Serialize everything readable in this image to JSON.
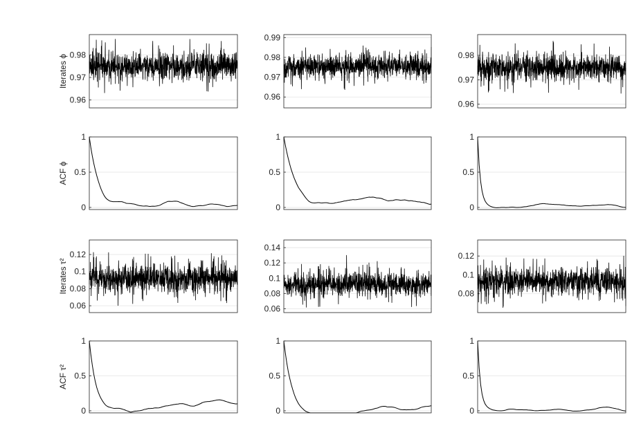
{
  "figure": {
    "background": "#ffffff",
    "trace_color": "#000000",
    "grid_color": "#e3e3e3"
  },
  "chart_data": [
    {
      "type": "line",
      "row": 0,
      "col": 0,
      "ylabel": "Iterates ϕ",
      "ylim": [
        0.9565,
        0.989
      ],
      "yticks": [
        0.96,
        0.97,
        0.98
      ],
      "grid": true,
      "series": [
        {
          "kind": "trace",
          "n": 1000,
          "center": 0.975,
          "spread": 0.0055,
          "clip": [
            0.957,
            0.989
          ]
        }
      ]
    },
    {
      "type": "line",
      "row": 0,
      "col": 1,
      "ylabel": "",
      "ylim": [
        0.9545,
        0.9915
      ],
      "yticks": [
        0.96,
        0.97,
        0.98,
        0.99
      ],
      "grid": true,
      "series": [
        {
          "kind": "trace",
          "n": 1000,
          "center": 0.9755,
          "spread": 0.0055,
          "clip": [
            0.9555,
            0.9905
          ]
        }
      ]
    },
    {
      "type": "line",
      "row": 0,
      "col": 2,
      "ylabel": "",
      "ylim": [
        0.9585,
        0.9885
      ],
      "yticks": [
        0.96,
        0.97,
        0.98
      ],
      "grid": true,
      "series": [
        {
          "kind": "trace",
          "n": 1000,
          "center": 0.975,
          "spread": 0.005,
          "clip": [
            0.9595,
            0.9875
          ]
        }
      ]
    },
    {
      "type": "line",
      "row": 1,
      "col": 0,
      "ylabel": "ACF ϕ",
      "ylim": [
        -0.03,
        1
      ],
      "yticks": [
        0,
        0.5,
        1
      ],
      "grid": true,
      "series": [
        {
          "kind": "acf",
          "n": 100,
          "decay": 0.15,
          "noise": 0.025
        }
      ]
    },
    {
      "type": "line",
      "row": 1,
      "col": 1,
      "ylabel": "",
      "ylim": [
        -0.03,
        1
      ],
      "yticks": [
        0,
        0.5,
        1
      ],
      "grid": true,
      "series": [
        {
          "kind": "acf",
          "n": 100,
          "decay": 0.13,
          "noise": 0.03
        }
      ]
    },
    {
      "type": "line",
      "row": 1,
      "col": 2,
      "ylabel": "",
      "ylim": [
        -0.03,
        1
      ],
      "yticks": [
        0,
        0.5,
        1
      ],
      "grid": true,
      "series": [
        {
          "kind": "acf",
          "n": 100,
          "decay": 0.5,
          "noise": 0.015
        }
      ]
    },
    {
      "type": "line",
      "row": 2,
      "col": 0,
      "ylabel": "Iterates τ²",
      "ylim": [
        0.052,
        0.137
      ],
      "yticks": [
        0.06,
        0.08,
        0.1,
        0.12
      ],
      "grid": true,
      "series": [
        {
          "kind": "trace",
          "n": 1000,
          "center": 0.092,
          "spread": 0.014,
          "clip": [
            0.054,
            0.136
          ]
        }
      ]
    },
    {
      "type": "line",
      "row": 2,
      "col": 1,
      "ylabel": "",
      "ylim": [
        0.055,
        0.15
      ],
      "yticks": [
        0.06,
        0.08,
        0.1,
        0.12,
        0.14
      ],
      "grid": true,
      "series": [
        {
          "kind": "trace",
          "n": 1000,
          "center": 0.092,
          "spread": 0.014,
          "clip": [
            0.056,
            0.149
          ]
        }
      ]
    },
    {
      "type": "line",
      "row": 2,
      "col": 2,
      "ylabel": "",
      "ylim": [
        0.06,
        0.137
      ],
      "yticks": [
        0.08,
        0.1,
        0.12
      ],
      "grid": true,
      "series": [
        {
          "kind": "trace",
          "n": 1000,
          "center": 0.093,
          "spread": 0.013,
          "clip": [
            0.062,
            0.136
          ]
        }
      ]
    },
    {
      "type": "line",
      "row": 3,
      "col": 0,
      "ylabel": "ACF τ²",
      "ylim": [
        -0.03,
        1
      ],
      "yticks": [
        0,
        0.5,
        1
      ],
      "grid": true,
      "series": [
        {
          "kind": "acf",
          "n": 100,
          "decay": 0.2,
          "noise": 0.025
        }
      ]
    },
    {
      "type": "line",
      "row": 3,
      "col": 1,
      "ylabel": "",
      "ylim": [
        -0.03,
        1
      ],
      "yticks": [
        0,
        0.5,
        1
      ],
      "grid": true,
      "series": [
        {
          "kind": "acf",
          "n": 100,
          "decay": 0.18,
          "noise": 0.025
        }
      ]
    },
    {
      "type": "line",
      "row": 3,
      "col": 2,
      "ylabel": "",
      "ylim": [
        -0.03,
        1
      ],
      "yticks": [
        0,
        0.5,
        1
      ],
      "grid": true,
      "series": [
        {
          "kind": "acf",
          "n": 100,
          "decay": 0.5,
          "noise": 0.015
        }
      ]
    }
  ]
}
